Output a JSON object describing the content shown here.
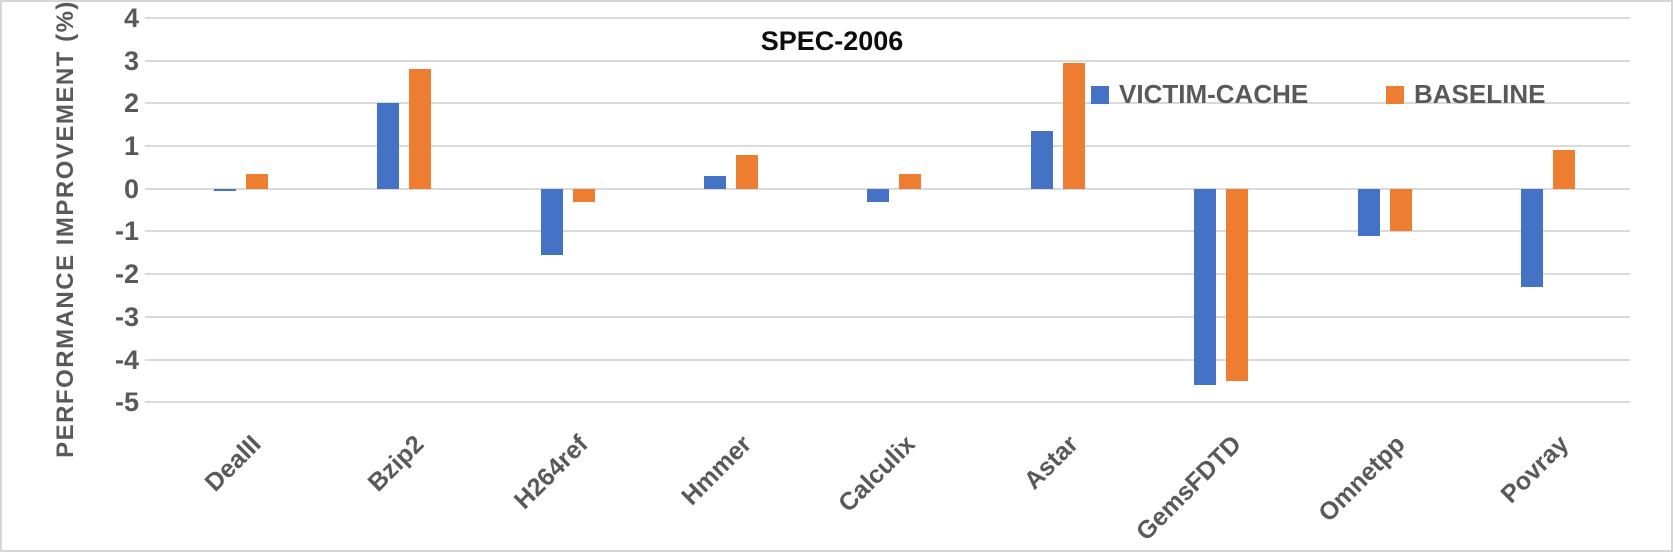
{
  "chart_data": {
    "type": "bar",
    "title": "SPEC-2006",
    "xlabel": "",
    "ylabel": "PERFORMANCE IMPROVEMENT (%)",
    "categories": [
      "DealII",
      "Bzip2",
      "H264ref",
      "Hmmer",
      "Calculix",
      "Astar",
      "GemsFDTD",
      "Omnetpp",
      "Povray"
    ],
    "series": [
      {
        "name": "VICTIM-CACHE",
        "color": "#4472C4",
        "values": [
          -0.05,
          2.0,
          -1.55,
          0.3,
          -0.3,
          1.35,
          -4.6,
          -1.1,
          -2.3
        ]
      },
      {
        "name": "BASELINE",
        "color": "#ED7D31",
        "values": [
          0.35,
          2.8,
          -0.3,
          0.8,
          0.35,
          2.95,
          -4.5,
          -1.0,
          0.9
        ]
      }
    ],
    "ylim": [
      -5,
      4
    ],
    "yticks": [
      4,
      3,
      2,
      1,
      0,
      -1,
      -2,
      -3,
      -4,
      -5
    ],
    "grid": true,
    "legend_position": "top-right-inside",
    "colors": {
      "gridline": "#D9D9D9",
      "axis_text": "#595959",
      "title_text": "#0D0D0D",
      "background": "#FFFFFF",
      "border": "#D6D6D6"
    }
  }
}
